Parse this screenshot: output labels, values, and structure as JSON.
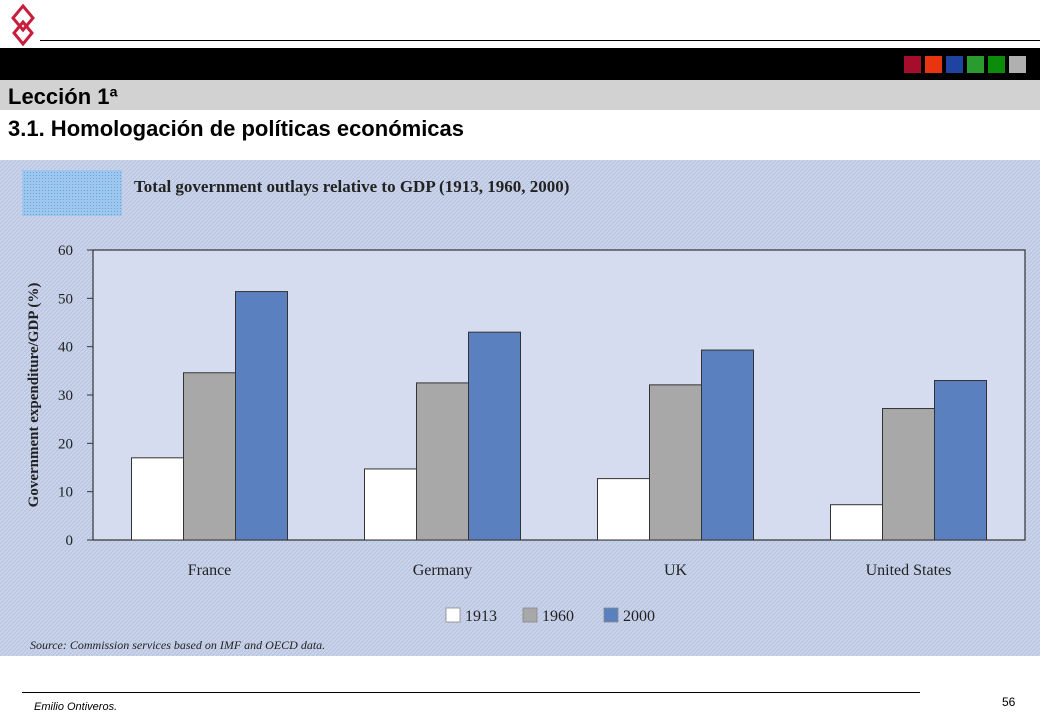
{
  "slide": {
    "lesson": "Lección 1ª",
    "subtitle": "3.1. Homologación de políticas económicas",
    "author": "Emilio Ontiveros.",
    "page_number": "56"
  },
  "colors": {
    "band": "#000000",
    "title_band": "#d2d2d2",
    "swatches": [
      "#a50d2b",
      "#e8340f",
      "#1f43a0",
      "#2a9b2f",
      "#0b8c0b",
      "#b0b0b0"
    ],
    "figure_bg": "#c9d3ea",
    "plot_bg": "#d6dcef",
    "bar_1913": "#ffffff",
    "bar_1960": "#a8a8a8",
    "bar_2000": "#5b80c0"
  },
  "icons": {
    "logo": "ribbon-knot-logo"
  },
  "chart_data": {
    "type": "bar",
    "title": "Total government outlays relative to GDP (1913, 1960, 2000)",
    "xlabel": "",
    "ylabel": "Government expenditure/GDP (%)",
    "ylim": [
      0,
      60
    ],
    "yticks": [
      0,
      10,
      20,
      30,
      40,
      50,
      60
    ],
    "categories": [
      "France",
      "Germany",
      "UK",
      "United States"
    ],
    "series": [
      {
        "name": "1913",
        "values": [
          17,
          14.7,
          12.7,
          7.3
        ]
      },
      {
        "name": "1960",
        "values": [
          34.6,
          32.5,
          32.1,
          27.2
        ]
      },
      {
        "name": "2000",
        "values": [
          51.4,
          43,
          39.3,
          33
        ]
      }
    ],
    "grid": false,
    "legend": "bottom-center",
    "source": "Source: Commission services based on IMF and OECD data."
  }
}
